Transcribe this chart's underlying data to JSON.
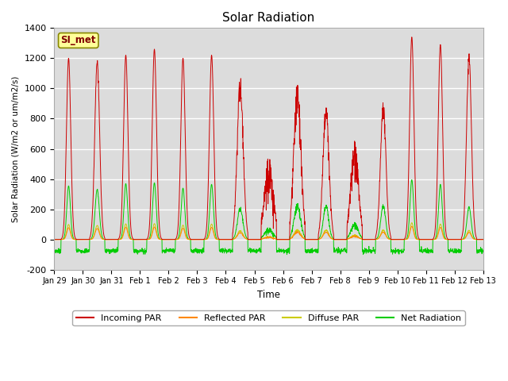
{
  "title": "Solar Radiation",
  "xlabel": "Time",
  "ylabel": "Solar Radiation (W/m2 or um/m2/s)",
  "ylim": [
    -200,
    1400
  ],
  "yticks": [
    -200,
    0,
    200,
    400,
    600,
    800,
    1000,
    1200,
    1400
  ],
  "xtick_labels": [
    "Jan 29",
    "Jan 30",
    "Jan 31",
    "Feb 1",
    "Feb 2",
    "Feb 3",
    "Feb 4",
    "Feb 5",
    "Feb 6",
    "Feb 7",
    "Feb 8",
    "Feb 9",
    "Feb 10",
    "Feb 11",
    "Feb 12",
    "Feb 13"
  ],
  "station_label": "SI_met",
  "colors": {
    "incoming": "#cc0000",
    "reflected": "#ff8800",
    "diffuse": "#cccc00",
    "net": "#00cc00",
    "background": "#dcdcdc"
  },
  "legend_labels": [
    "Incoming PAR",
    "Reflected PAR",
    "Diffuse PAR",
    "Net Radiation"
  ],
  "n_days": 15,
  "night_net": -75
}
